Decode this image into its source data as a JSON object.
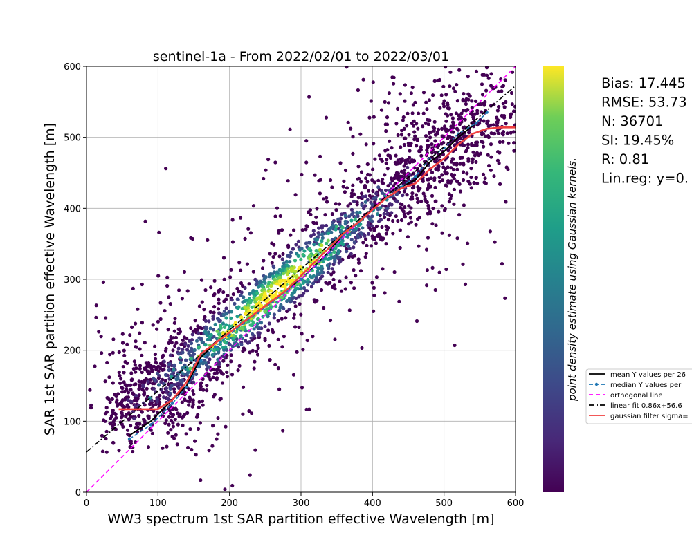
{
  "chart_data": {
    "type": "scatter",
    "title": "sentinel-1a - From 2022/02/01 to 2022/03/01",
    "xlabel": "WW3 spectrum 1st SAR partition effective Wavelength [m]",
    "ylabel": "SAR 1st SAR partition effective Wavelength [m]",
    "xlim": [
      0,
      600
    ],
    "ylim": [
      0,
      600
    ],
    "xticks": [
      "0",
      "100",
      "200",
      "300",
      "400",
      "500",
      "600"
    ],
    "yticks": [
      "0",
      "100",
      "200",
      "300",
      "400",
      "500",
      "600"
    ],
    "grid": true,
    "colormap": "viridis",
    "colorbar_label": "point density estimate using Gaussian kernels.",
    "stats": [
      "Bias: 17.445",
      "RMSE: 53.73",
      "N: 36701",
      "SI: 19.45%",
      "R: 0.81",
      "Lin.reg: y=0."
    ],
    "legend": {
      "placement": "right",
      "entries": [
        {
          "label": "mean Y values per 26",
          "color": "#000000",
          "style": "solid"
        },
        {
          "label": "median Y values per",
          "color": "#1f77b4",
          "style": "dashed-marker"
        },
        {
          "label": "orthogonal line",
          "color": "#ff00ff",
          "style": "dashed"
        },
        {
          "label": "linear fit 0.86x+56.6",
          "color": "#000000",
          "style": "dashdot"
        },
        {
          "label": "gaussian filter sigma=",
          "color": "#f04040",
          "style": "solid"
        }
      ]
    },
    "series": [
      {
        "name": "mean Y values per 26",
        "color": "#000000",
        "x": [
          60,
          90,
          120,
          140,
          160,
          180,
          200,
          220,
          240,
          260,
          280,
          300,
          320,
          340,
          360,
          380,
          400,
          420,
          440,
          460,
          480,
          500,
          520,
          545
        ],
        "y": [
          80,
          100,
          130,
          150,
          190,
          210,
          225,
          240,
          255,
          270,
          285,
          300,
          320,
          340,
          365,
          380,
          400,
          415,
          430,
          440,
          465,
          480,
          500,
          520
        ]
      },
      {
        "name": "median Y values per",
        "color": "#1f77b4",
        "x": [
          60,
          90,
          120,
          140,
          160,
          180,
          200,
          220,
          240,
          260,
          280,
          300,
          320,
          340,
          360,
          380,
          400,
          420,
          440,
          460,
          480,
          500,
          520,
          545,
          560
        ],
        "y": [
          75,
          95,
          125,
          148,
          185,
          205,
          222,
          238,
          253,
          268,
          283,
          300,
          318,
          338,
          362,
          378,
          398,
          415,
          430,
          445,
          470,
          485,
          505,
          520,
          535
        ]
      },
      {
        "name": "orthogonal line",
        "color": "#ff00ff",
        "x": [
          0,
          600
        ],
        "y": [
          0,
          600
        ]
      },
      {
        "name": "linear fit 0.86x+56.6",
        "color": "#000000",
        "x": [
          0,
          600
        ],
        "y": [
          56.6,
          572.6
        ]
      },
      {
        "name": "gaussian filter sigma=",
        "color": "#f04040",
        "x": [
          45,
          100,
          120,
          140,
          160,
          180,
          200,
          220,
          240,
          260,
          280,
          300,
          320,
          340,
          360,
          380,
          400,
          420,
          440,
          460,
          480,
          500,
          520,
          540,
          560,
          580,
          600
        ],
        "y": [
          117,
          117,
          130,
          155,
          195,
          210,
          225,
          240,
          255,
          270,
          285,
          305,
          325,
          345,
          365,
          380,
          398,
          415,
          428,
          435,
          455,
          470,
          490,
          505,
          512,
          514,
          514
        ]
      }
    ]
  }
}
